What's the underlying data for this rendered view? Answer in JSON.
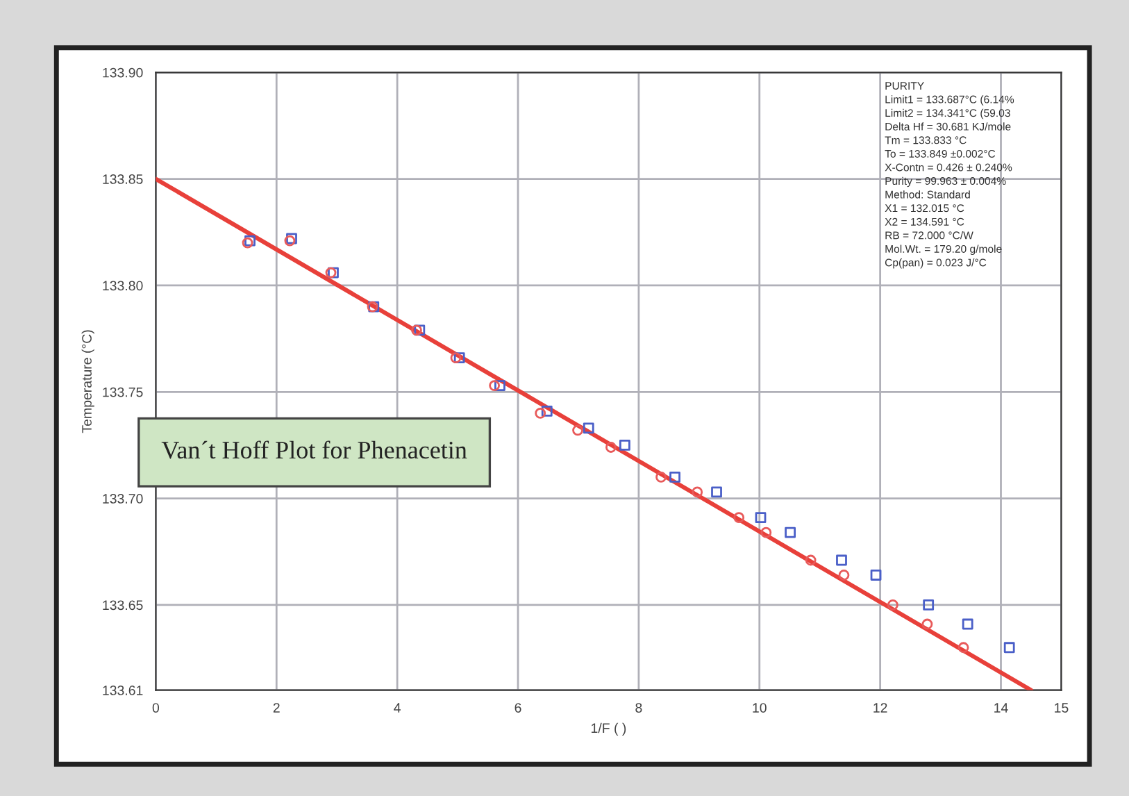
{
  "chart_data": {
    "type": "scatter",
    "title": "Van´t Hoff Plot for Phenacetin",
    "xlabel": "1/F ( )",
    "ylabel": "Temperature (°C)",
    "xlim": [
      0,
      15
    ],
    "xticks": [
      0,
      2,
      4,
      6,
      8,
      10,
      12,
      14,
      15
    ],
    "ylim": [
      133.61,
      133.9
    ],
    "yticks": [
      {
        "value": 133.61,
        "label": "133.61"
      },
      {
        "value": 133.65,
        "label": "133.65"
      },
      {
        "value": 133.7,
        "label": "133.70"
      },
      {
        "value": 133.75,
        "label": "133.75"
      },
      {
        "value": 133.8,
        "label": "133.80"
      },
      {
        "value": 133.85,
        "label": "133.85"
      },
      {
        "value": 133.9,
        "label": "133.90"
      }
    ],
    "grid": true,
    "series": [
      {
        "type": "line",
        "color": "#e8403a",
        "marker": "none",
        "line_style": "solid",
        "x": [
          0,
          14.5
        ],
        "values": [
          133.85,
          133.61
        ]
      },
      {
        "color": "#4a5fc8",
        "marker": "square",
        "x": [
          1.56,
          2.25,
          2.94,
          3.61,
          4.37,
          5.03,
          5.7,
          6.48,
          7.17,
          7.77,
          8.6,
          9.29,
          10.02,
          10.51,
          11.36,
          11.93,
          12.8,
          13.45,
          14.14
        ],
        "values": [
          133.821,
          133.822,
          133.806,
          133.79,
          133.779,
          133.766,
          133.753,
          133.741,
          133.733,
          133.725,
          133.71,
          133.703,
          133.691,
          133.684,
          133.671,
          133.664,
          133.65,
          133.641,
          133.63
        ]
      },
      {
        "color": "#e85a5a",
        "marker": "circle",
        "x": [
          1.52,
          2.22,
          2.9,
          3.59,
          4.32,
          4.97,
          5.61,
          6.37,
          6.99,
          7.54,
          8.37,
          8.97,
          9.66,
          10.11,
          10.85,
          11.4,
          12.21,
          12.78,
          13.38
        ],
        "values": [
          133.82,
          133.821,
          133.806,
          133.79,
          133.779,
          133.766,
          133.753,
          133.74,
          133.732,
          133.724,
          133.71,
          133.703,
          133.691,
          133.684,
          133.671,
          133.664,
          133.65,
          133.641,
          133.63
        ]
      }
    ],
    "annotations": [
      "PURITY\nLimit1 = 133.687°C (6.14%\nLimit2 = 134.341°C (59.03\nDelta Hf = 30.681 KJ/mole\nTm = 133.833 °C\nTo = 133.849 ±0.002°C\nX-Contn = 0.426 ± 0.240%\nPurity = 99.963 ± 0.004%\nMethod: Standard\nX1 = 132.015 °C\nX2 = 134.591 °C\nRB = 72.000 °C/W\nMol.Wt. = 179.20 g/mole\nCp(pan) = 0.023 J/°C"
    ]
  }
}
